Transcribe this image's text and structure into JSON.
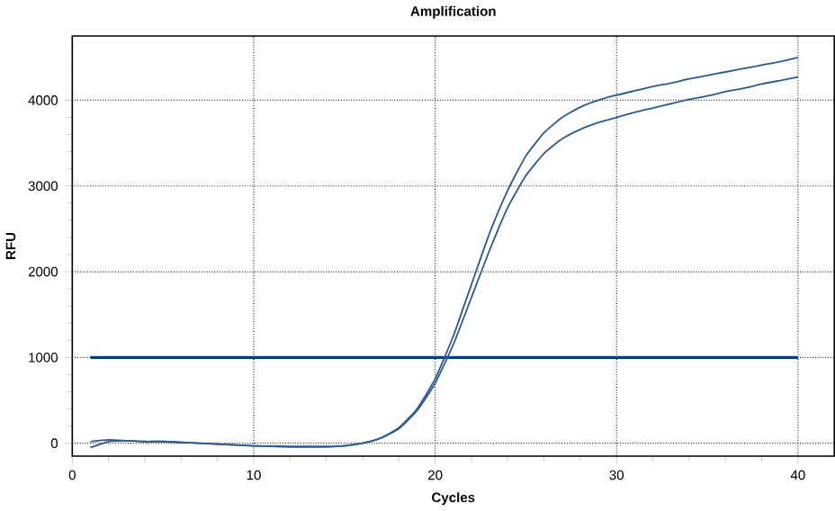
{
  "chart_data": {
    "type": "line",
    "title": "Amplification",
    "xlabel": "Cycles",
    "ylabel": "RFU",
    "x": [
      1,
      2,
      3,
      4,
      5,
      6,
      7,
      8,
      9,
      10,
      11,
      12,
      13,
      14,
      15,
      16,
      17,
      18,
      19,
      20,
      21,
      22,
      23,
      24,
      25,
      26,
      27,
      28,
      29,
      30,
      31,
      32,
      33,
      34,
      35,
      36,
      37,
      38,
      39,
      40
    ],
    "series": [
      {
        "color": "#2b5a94",
        "values": [
          -50,
          20,
          30,
          20,
          20,
          10,
          0,
          -10,
          -20,
          -30,
          -35,
          -40,
          -40,
          -40,
          -30,
          0,
          60,
          180,
          400,
          750,
          1250,
          1850,
          2450,
          2950,
          3350,
          3620,
          3800,
          3920,
          4000,
          4060,
          4110,
          4160,
          4200,
          4250,
          4290,
          4330,
          4370,
          4410,
          4450,
          4500
        ]
      },
      {
        "color": "#2b5a94",
        "values": [
          20,
          40,
          30,
          20,
          20,
          10,
          0,
          -10,
          -20,
          -30,
          -35,
          -40,
          -40,
          -40,
          -30,
          0,
          60,
          170,
          380,
          700,
          1150,
          1700,
          2250,
          2750,
          3120,
          3380,
          3550,
          3660,
          3740,
          3800,
          3860,
          3910,
          3960,
          4010,
          4050,
          4100,
          4140,
          4190,
          4230,
          4270
        ]
      }
    ],
    "ref_lines": [
      {
        "axis": "y",
        "value": 1000,
        "color": "#003f7f"
      }
    ],
    "xlim": [
      0,
      42
    ],
    "ylim": [
      -150,
      4750
    ],
    "xticks": [
      0,
      10,
      20,
      30,
      40
    ],
    "yticks": [
      0,
      1000,
      2000,
      3000,
      4000
    ],
    "grid": true,
    "line_style": "solid",
    "marker": "none"
  }
}
